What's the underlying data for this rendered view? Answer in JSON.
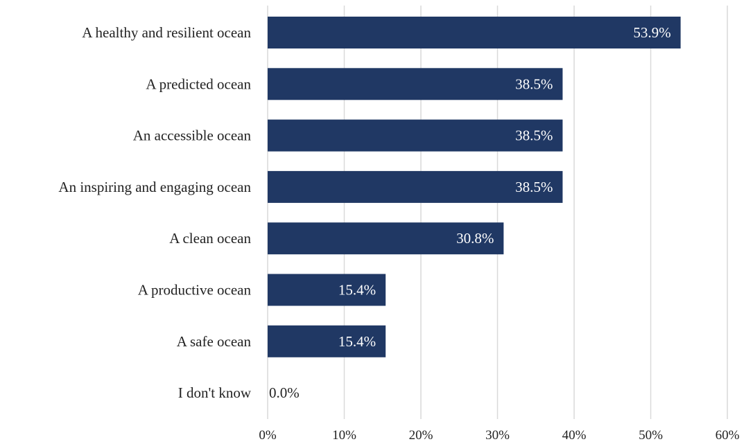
{
  "chart_data": {
    "type": "bar",
    "orientation": "horizontal",
    "categories": [
      "A healthy and resilient ocean",
      "A predicted ocean",
      "An accessible ocean",
      "An inspiring and engaging ocean",
      "A clean ocean",
      "A productive ocean",
      "A safe ocean",
      "I don't know"
    ],
    "values": [
      53.9,
      38.5,
      38.5,
      38.5,
      30.8,
      15.4,
      15.4,
      0.0
    ],
    "value_labels": [
      "53.9%",
      "38.5%",
      "38.5%",
      "38.5%",
      "30.8%",
      "15.4%",
      "15.4%",
      "0.0%"
    ],
    "xlim": [
      0,
      60
    ],
    "xticks": [
      0,
      10,
      20,
      30,
      40,
      50,
      60
    ],
    "xtick_labels": [
      "0%",
      "10%",
      "20%",
      "30%",
      "40%",
      "50%",
      "60%"
    ],
    "title": "",
    "xlabel": "",
    "ylabel": "",
    "grid": "vertical",
    "legend": "none",
    "colors": {
      "bar": "#203864",
      "grid": "#d9d9d9",
      "label_inside": "#ffffff",
      "label_outside": "#222222",
      "text": "#222222"
    }
  }
}
